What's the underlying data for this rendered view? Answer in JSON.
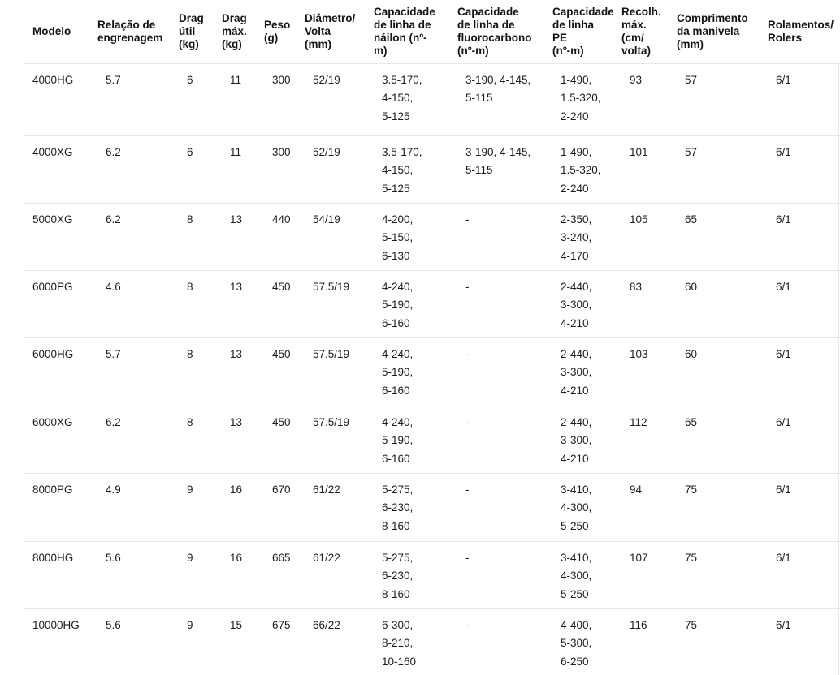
{
  "table": {
    "columns": [
      {
        "key": "modelo",
        "label": "Modelo"
      },
      {
        "key": "relacao-engrenagem",
        "label": "Relação de\nengrenagem"
      },
      {
        "key": "drag-util",
        "label": "Drag\nútil\n(kg)"
      },
      {
        "key": "drag-max",
        "label": "Drag\nmáx.\n(kg)"
      },
      {
        "key": "peso",
        "label": "Peso\n(g)"
      },
      {
        "key": "diametro-volta",
        "label": "Diâmetro/\nVolta\n(mm)"
      },
      {
        "key": "capacidade-nailon",
        "label": "Capacidade\nde linha de\nnáilon (nº-\nm)"
      },
      {
        "key": "capacidade-fluorocarbono",
        "label": "Capacidade\nde linha de\nfluorocarbono\n(nº-m)"
      },
      {
        "key": "capacidade-pe",
        "label": "Capacidade\nde linha PE\n(nº-m)"
      },
      {
        "key": "recolhimento-max",
        "label": "Recolh.\nmáx.\n(cm/\nvolta)"
      },
      {
        "key": "comprimento-manivela",
        "label": "Comprimento\nda manivela\n(mm)"
      },
      {
        "key": "rolamentos",
        "label": "Rolamentos/\nRolers"
      }
    ],
    "rows": [
      [
        "4000HG",
        "5.7",
        "6",
        "11",
        "300",
        "52/19",
        "3.5-170,\n4-150,\n5-125",
        "3-190, 4-145,\n5-115",
        "1-490,\n1.5-320,\n2-240",
        "93",
        "57",
        "6/1"
      ],
      [
        "4000XG",
        "6.2",
        "6",
        "11",
        "300",
        "52/19",
        "3.5-170,\n4-150,\n5-125",
        "3-190, 4-145,\n5-115",
        "1-490,\n1.5-320,\n2-240",
        "101",
        "57",
        "6/1"
      ],
      [
        "5000XG",
        "6.2",
        "8",
        "13",
        "440",
        "54/19",
        "4-200,\n5-150,\n6-130",
        "-",
        "2-350,\n3-240,\n4-170",
        "105",
        "65",
        "6/1"
      ],
      [
        "6000PG",
        "4.6",
        "8",
        "13",
        "450",
        "57.5/19",
        "4-240,\n5-190,\n6-160",
        "-",
        "2-440,\n3-300,\n4-210",
        "83",
        "60",
        "6/1"
      ],
      [
        "6000HG",
        "5.7",
        "8",
        "13",
        "450",
        "57.5/19",
        "4-240,\n5-190,\n6-160",
        "-",
        "2-440,\n3-300,\n4-210",
        "103",
        "60",
        "6/1"
      ],
      [
        "6000XG",
        "6.2",
        "8",
        "13",
        "450",
        "57.5/19",
        "4-240,\n5-190,\n6-160",
        "-",
        "2-440,\n3-300,\n4-210",
        "112",
        "65",
        "6/1"
      ],
      [
        "8000PG",
        "4.9",
        "9",
        "16",
        "670",
        "61/22",
        "5-275,\n6-230,\n8-160",
        "-",
        "3-410,\n4-300,\n5-250",
        "94",
        "75",
        "6/1"
      ],
      [
        "8000HG",
        "5.6",
        "9",
        "16",
        "665",
        "61/22",
        "5-275,\n6-230,\n8-160",
        "-",
        "3-410,\n4-300,\n5-250",
        "107",
        "75",
        "6/1"
      ],
      [
        "10000HG",
        "5.6",
        "9",
        "15",
        "675",
        "66/22",
        "6-300,\n8-210,\n10-160",
        "-",
        "4-400,\n5-300,\n6-250",
        "116",
        "75",
        "6/1"
      ]
    ]
  }
}
